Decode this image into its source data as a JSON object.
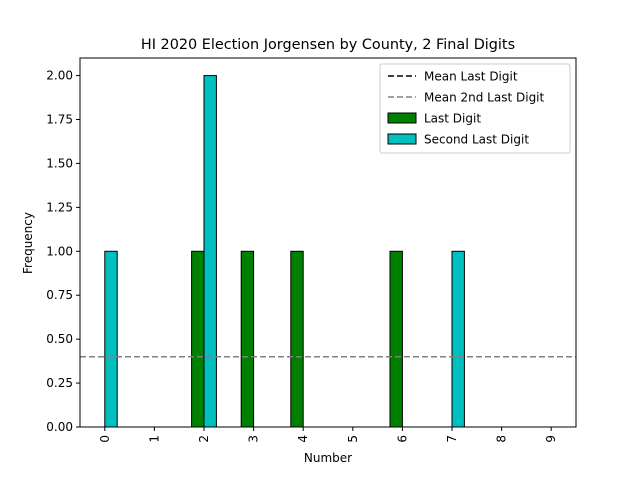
{
  "chart_data": {
    "type": "bar",
    "title": "HI 2020 Election Jorgensen by County, 2 Final Digits",
    "xlabel": "Number",
    "ylabel": "Frequency",
    "categories": [
      "0",
      "1",
      "2",
      "3",
      "4",
      "5",
      "6",
      "7",
      "8",
      "9"
    ],
    "ylim": [
      0,
      2.1
    ],
    "yticks": [
      "0.00",
      "0.25",
      "0.50",
      "0.75",
      "1.00",
      "1.25",
      "1.50",
      "1.75",
      "2.00"
    ],
    "series": [
      {
        "name": "Last Digit",
        "color": "#008000",
        "values": [
          0,
          0,
          1,
          1,
          1,
          0,
          1,
          0,
          0,
          0
        ]
      },
      {
        "name": "Second Last Digit",
        "color": "#00bfbf",
        "values": [
          1,
          0,
          2,
          0,
          0,
          0,
          0,
          1,
          0,
          0
        ]
      }
    ],
    "mean_lines": [
      {
        "name": "Mean Last Digit",
        "value": 0.4,
        "color": "#000000"
      },
      {
        "name": "Mean 2nd Last Digit",
        "value": 0.4,
        "color": "#808080"
      }
    ],
    "legend_position": "top-right",
    "grid": false
  }
}
